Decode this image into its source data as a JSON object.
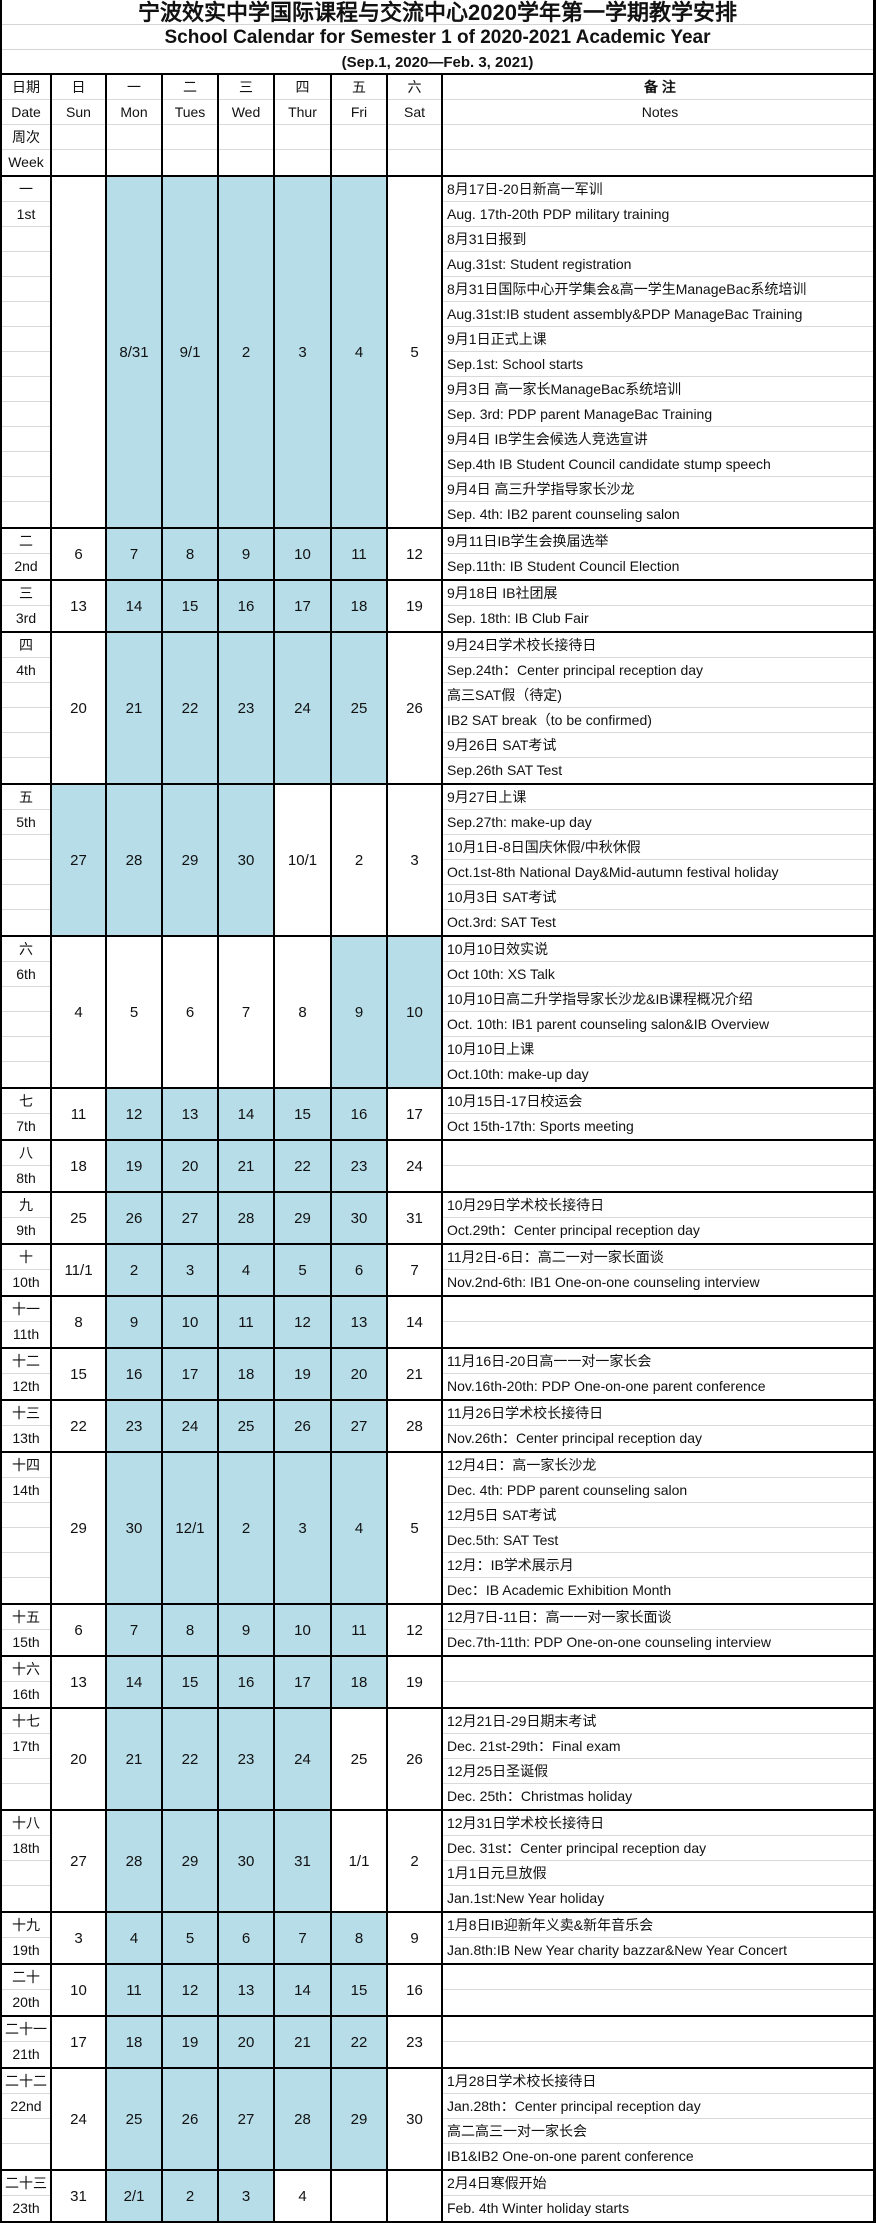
{
  "title": {
    "cn": "宁波效实中学国际课程与交流中心2020学年第一学期教学安排",
    "en": "School Calendar for Semester 1 of 2020-2021 Academic Year",
    "range": "(Sep.1, 2020—Feb. 3, 2021)"
  },
  "colors": {
    "shade": "#b7dde8",
    "border": "#000000"
  },
  "header": {
    "week_col": [
      "日期",
      "Date",
      "周次",
      "Week"
    ],
    "days": [
      {
        "cn": "日",
        "en": "Sun"
      },
      {
        "cn": "一",
        "en": "Mon"
      },
      {
        "cn": "二",
        "en": "Tues"
      },
      {
        "cn": "三",
        "en": "Wed"
      },
      {
        "cn": "四",
        "en": "Thur"
      },
      {
        "cn": "五",
        "en": "Fri"
      },
      {
        "cn": "六",
        "en": "Sat"
      }
    ],
    "notes": {
      "cn": "备 注",
      "en": "Notes"
    }
  },
  "weeks": [
    {
      "cn": "一",
      "en": "1st",
      "days": [
        "",
        "8/31",
        "9/1",
        "2",
        "3",
        "4",
        "5"
      ],
      "shaded": [
        0,
        1,
        1,
        1,
        1,
        1,
        0
      ],
      "notes": [
        "8月17日-20日新高一军训",
        "Aug. 17th-20th PDP military training",
        "8月31日报到",
        "Aug.31st: Student  registration",
        "8月31日国际中心开学集会&高一学生ManageBac系统培训",
        "Aug.31st:IB student assembly&PDP ManageBac Training",
        "9月1日正式上课",
        "Sep.1st: School starts",
        "9月3日 高一家长ManageBac系统培训",
        "Sep. 3rd: PDP parent ManageBac Training",
        "9月4日 IB学生会候选人竞选宣讲",
        "Sep.4th IB Student Council candidate stump speech",
        "9月4日 高三升学指导家长沙龙",
        "Sep. 4th: IB2 parent counseling salon"
      ]
    },
    {
      "cn": "二",
      "en": "2nd",
      "days": [
        "6",
        "7",
        "8",
        "9",
        "10",
        "11",
        "12"
      ],
      "shaded": [
        0,
        1,
        1,
        1,
        1,
        1,
        0
      ],
      "notes": [
        "9月11日IB学生会换届选举",
        "Sep.11th: IB Student Council Election"
      ]
    },
    {
      "cn": "三",
      "en": "3rd",
      "days": [
        "13",
        "14",
        "15",
        "16",
        "17",
        "18",
        "19"
      ],
      "shaded": [
        0,
        1,
        1,
        1,
        1,
        1,
        0
      ],
      "notes": [
        "9月18日 IB社团展",
        "Sep. 18th: IB Club Fair"
      ]
    },
    {
      "cn": "四",
      "en": "4th",
      "days": [
        "20",
        "21",
        "22",
        "23",
        "24",
        "25",
        "26"
      ],
      "shaded": [
        0,
        1,
        1,
        1,
        1,
        1,
        0
      ],
      "notes": [
        "9月24日学术校长接待日",
        "Sep.24th：Center principal reception day",
        "高三SAT假（待定)",
        "IB2 SAT break（to be confirmed)",
        "9月26日 SAT考试",
        "Sep.26th SAT Test"
      ]
    },
    {
      "cn": "五",
      "en": "5th",
      "days": [
        "27",
        "28",
        "29",
        "30",
        "10/1",
        "2",
        "3"
      ],
      "shaded": [
        1,
        1,
        1,
        1,
        0,
        0,
        0
      ],
      "notes": [
        "9月27日上课",
        "Sep.27th: make-up day",
        "10月1日-8日国庆休假/中秋休假",
        "Oct.1st-8th National Day&Mid-autumn festival holiday",
        "10月3日 SAT考试",
        "Oct.3rd: SAT Test"
      ]
    },
    {
      "cn": "六",
      "en": "6th",
      "days": [
        "4",
        "5",
        "6",
        "7",
        "8",
        "9",
        "10"
      ],
      "shaded": [
        0,
        0,
        0,
        0,
        0,
        1,
        1
      ],
      "notes": [
        "10月10日效实说",
        "Oct 10th: XS Talk",
        "10月10日高二升学指导家长沙龙&IB课程概况介绍",
        "Oct. 10th: IB1  parent counseling salon&IB Overview",
        "10月10日上课",
        "Oct.10th: make-up day"
      ]
    },
    {
      "cn": "七",
      "en": "7th",
      "days": [
        "11",
        "12",
        "13",
        "14",
        "15",
        "16",
        "17"
      ],
      "shaded": [
        0,
        1,
        1,
        1,
        1,
        1,
        0
      ],
      "notes": [
        "10月15日-17日校运会",
        "Oct 15th-17th: Sports meeting"
      ]
    },
    {
      "cn": "八",
      "en": "8th",
      "days": [
        "18",
        "19",
        "20",
        "21",
        "22",
        "23",
        "24"
      ],
      "shaded": [
        0,
        1,
        1,
        1,
        1,
        1,
        0
      ],
      "notes": [
        "",
        ""
      ]
    },
    {
      "cn": "九",
      "en": "9th",
      "days": [
        "25",
        "26",
        "27",
        "28",
        "29",
        "30",
        "31"
      ],
      "shaded": [
        0,
        1,
        1,
        1,
        1,
        1,
        0
      ],
      "notes": [
        "10月29日学术校长接待日",
        "Oct.29th：Center principal reception day"
      ]
    },
    {
      "cn": "十",
      "en": "10th",
      "days": [
        "11/1",
        "2",
        "3",
        "4",
        "5",
        "6",
        "7"
      ],
      "shaded": [
        0,
        1,
        1,
        1,
        1,
        1,
        0
      ],
      "notes": [
        "11月2日-6日：高二一对一家长面谈",
        "Nov.2nd-6th: IB1 One-on-one counseling interview"
      ]
    },
    {
      "cn": "十一",
      "en": "11th",
      "days": [
        "8",
        "9",
        "10",
        "11",
        "12",
        "13",
        "14"
      ],
      "shaded": [
        0,
        1,
        1,
        1,
        1,
        1,
        0
      ],
      "notes": [
        "",
        ""
      ]
    },
    {
      "cn": "十二",
      "en": "12th",
      "days": [
        "15",
        "16",
        "17",
        "18",
        "19",
        "20",
        "21"
      ],
      "shaded": [
        0,
        1,
        1,
        1,
        1,
        1,
        0
      ],
      "notes": [
        "11月16日-20日高一一对一家长会",
        "Nov.16th-20th: PDP One-on-one parent conference"
      ]
    },
    {
      "cn": "十三",
      "en": "13th",
      "days": [
        "22",
        "23",
        "24",
        "25",
        "26",
        "27",
        "28"
      ],
      "shaded": [
        0,
        1,
        1,
        1,
        1,
        1,
        0
      ],
      "notes": [
        "11月26日学术校长接待日",
        "Nov.26th：Center principal reception day"
      ]
    },
    {
      "cn": "十四",
      "en": "14th",
      "days": [
        "29",
        "30",
        "12/1",
        "2",
        "3",
        "4",
        "5"
      ],
      "shaded": [
        0,
        1,
        1,
        1,
        1,
        1,
        0
      ],
      "notes": [
        "12月4日：高一家长沙龙",
        "Dec. 4th: PDP parent counseling salon",
        "12月5日  SAT考试",
        "Dec.5th: SAT Test",
        "12月：IB学术展示月",
        "Dec：IB Academic Exhibition Month"
      ]
    },
    {
      "cn": "十五",
      "en": "15th",
      "days": [
        "6",
        "7",
        "8",
        "9",
        "10",
        "11",
        "12"
      ],
      "shaded": [
        0,
        1,
        1,
        1,
        1,
        1,
        0
      ],
      "notes": [
        "12月7日-11日：高一一对一家长面谈",
        "Dec.7th-11th: PDP One-on-one counseling interview"
      ]
    },
    {
      "cn": "十六",
      "en": "16th",
      "days": [
        "13",
        "14",
        "15",
        "16",
        "17",
        "18",
        "19"
      ],
      "shaded": [
        0,
        1,
        1,
        1,
        1,
        1,
        0
      ],
      "notes": [
        "",
        ""
      ]
    },
    {
      "cn": "十七",
      "en": "17th",
      "days": [
        "20",
        "21",
        "22",
        "23",
        "24",
        "25",
        "26"
      ],
      "shaded": [
        0,
        1,
        1,
        1,
        1,
        0,
        0
      ],
      "notes": [
        "12月21日-29日期末考试",
        "Dec. 21st-29th：Final exam",
        "12月25日圣诞假",
        "Dec. 25th：Christmas holiday"
      ]
    },
    {
      "cn": "十八",
      "en": "18th",
      "days": [
        "27",
        "28",
        "29",
        "30",
        "31",
        "1/1",
        "2"
      ],
      "shaded": [
        0,
        1,
        1,
        1,
        1,
        0,
        0
      ],
      "notes": [
        "12月31日学术校长接待日",
        "Dec. 31st：Center principal reception day",
        "1月1日元旦放假",
        "Jan.1st:New Year holiday"
      ]
    },
    {
      "cn": "十九",
      "en": "19th",
      "days": [
        "3",
        "4",
        "5",
        "6",
        "7",
        "8",
        "9"
      ],
      "shaded": [
        0,
        1,
        1,
        1,
        1,
        1,
        0
      ],
      "notes": [
        "1月8日IB迎新年义卖&新年音乐会",
        "Jan.8th:IB New Year charity bazzar&New Year Concert"
      ]
    },
    {
      "cn": "二十",
      "en": "20th",
      "days": [
        "10",
        "11",
        "12",
        "13",
        "14",
        "15",
        "16"
      ],
      "shaded": [
        0,
        1,
        1,
        1,
        1,
        1,
        0
      ],
      "notes": [
        "",
        ""
      ]
    },
    {
      "cn": "二十一",
      "en": "21th",
      "days": [
        "17",
        "18",
        "19",
        "20",
        "21",
        "22",
        "23"
      ],
      "shaded": [
        0,
        1,
        1,
        1,
        1,
        1,
        0
      ],
      "notes": [
        "",
        ""
      ]
    },
    {
      "cn": "二十二",
      "en": "22nd",
      "days": [
        "24",
        "25",
        "26",
        "27",
        "28",
        "29",
        "30"
      ],
      "shaded": [
        0,
        1,
        1,
        1,
        1,
        1,
        0
      ],
      "notes": [
        "1月28日学术校长接待日",
        "Jan.28th：Center principal reception day",
        "高二高三一对一家长会",
        " IB1&IB2 One-on-one parent conference"
      ]
    },
    {
      "cn": "二十三",
      "en": "23th",
      "days": [
        "31",
        "2/1",
        "2",
        "3",
        "4",
        "",
        ""
      ],
      "shaded": [
        0,
        1,
        1,
        1,
        0,
        0,
        0
      ],
      "notes": [
        "2月4日寒假开始",
        "Feb. 4th  Winter holiday starts"
      ]
    }
  ]
}
